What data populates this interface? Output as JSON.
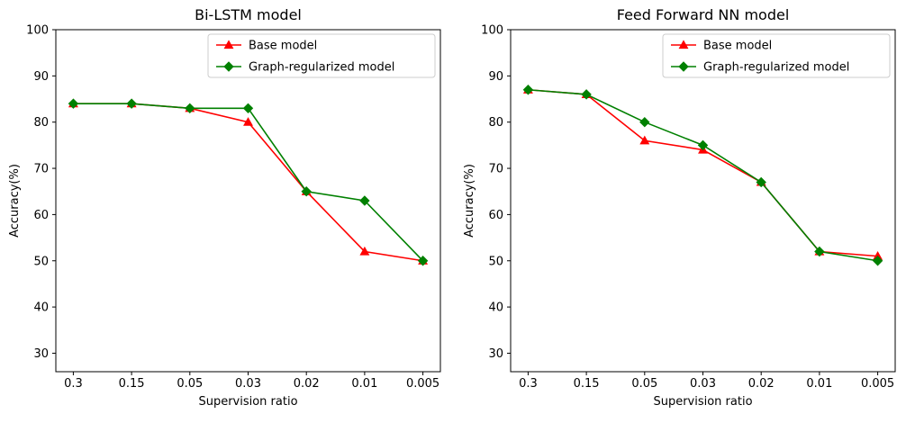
{
  "figure": {
    "background": "#ffffff",
    "axis_color": "#000000"
  },
  "legend": {
    "position": "upper right",
    "entries": [
      {
        "label": "Base model",
        "color": "#ff0000",
        "marker": "triangle"
      },
      {
        "label": "Graph-regularized model",
        "color": "#008000",
        "marker": "diamond"
      }
    ]
  },
  "chart_data": [
    {
      "type": "line",
      "title": "Bi-LSTM model",
      "xlabel": "Supervision ratio",
      "ylabel": "Accuracy(%)",
      "categories": [
        "0.3",
        "0.15",
        "0.05",
        "0.03",
        "0.02",
        "0.01",
        "0.005"
      ],
      "yticks": [
        30,
        40,
        50,
        60,
        70,
        80,
        90,
        100
      ],
      "ylim": [
        26,
        100
      ],
      "grid": false,
      "legend_position": "upper right",
      "series": [
        {
          "name": "Base model",
          "color": "#ff0000",
          "marker": "triangle",
          "values": [
            84,
            84,
            83,
            80,
            65,
            52,
            50
          ]
        },
        {
          "name": "Graph-regularized model",
          "color": "#008000",
          "marker": "diamond",
          "values": [
            84,
            84,
            83,
            83,
            65,
            63,
            50
          ]
        }
      ]
    },
    {
      "type": "line",
      "title": "Feed Forward NN model",
      "xlabel": "Supervision ratio",
      "ylabel": "Accuracy(%)",
      "categories": [
        "0.3",
        "0.15",
        "0.05",
        "0.03",
        "0.02",
        "0.01",
        "0.005"
      ],
      "yticks": [
        30,
        40,
        50,
        60,
        70,
        80,
        90,
        100
      ],
      "ylim": [
        26,
        100
      ],
      "grid": false,
      "legend_position": "upper right",
      "series": [
        {
          "name": "Base model",
          "color": "#ff0000",
          "marker": "triangle",
          "values": [
            87,
            86,
            76,
            74,
            67,
            52,
            51
          ]
        },
        {
          "name": "Graph-regularized model",
          "color": "#008000",
          "marker": "diamond",
          "values": [
            87,
            86,
            80,
            75,
            67,
            52,
            50
          ]
        }
      ]
    }
  ]
}
